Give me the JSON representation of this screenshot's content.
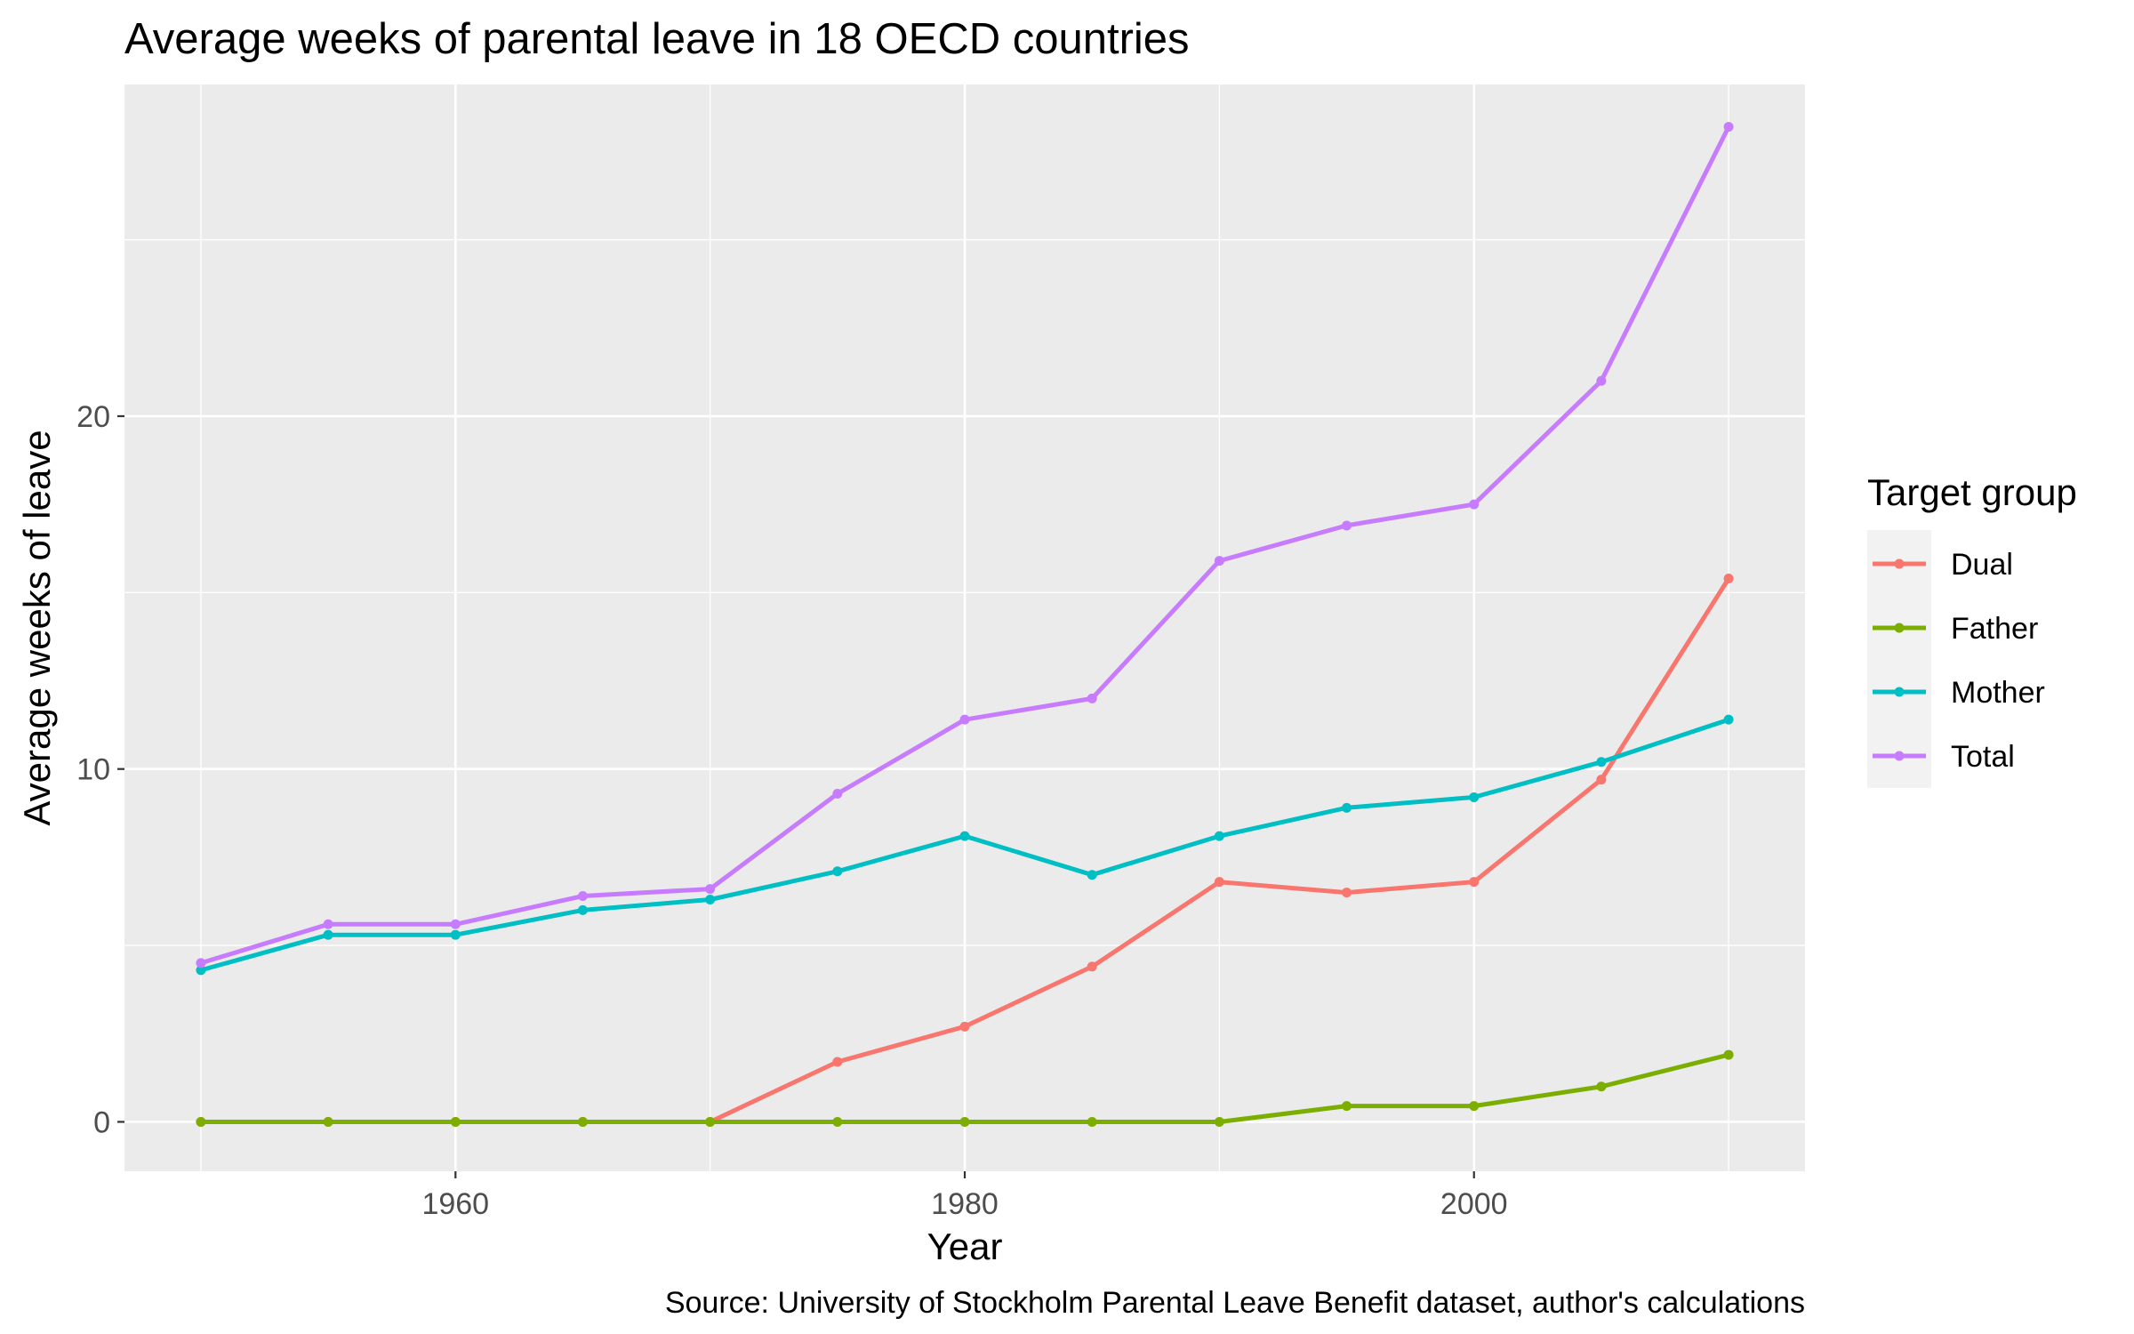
{
  "chart_data": {
    "type": "line",
    "title": "Average weeks of parental leave in 18 OECD countries",
    "caption": "Source: University of Stockholm Parental Leave Benefit dataset, author's calculations",
    "xlabel": "Year",
    "ylabel": "Average weeks of leave",
    "x": [
      1950,
      1955,
      1960,
      1965,
      1970,
      1975,
      1980,
      1985,
      1990,
      1995,
      2000,
      2005,
      2010
    ],
    "xlim": [
      1947,
      2013
    ],
    "ylim": [
      -1.4,
      29.4
    ],
    "x_ticks": [
      1960,
      1980,
      2000
    ],
    "x_tick_labels": [
      "1960",
      "1980",
      "2000"
    ],
    "y_ticks": [
      0,
      10,
      20
    ],
    "y_tick_labels": [
      "0",
      "10",
      "20"
    ],
    "grid": true,
    "panel_background": "#ebebeb",
    "legend": {
      "title": "Target group",
      "position": "right"
    },
    "series": [
      {
        "name": "Dual",
        "color": "#F8766D",
        "values": [
          0,
          0,
          0,
          0,
          0,
          1.7,
          2.7,
          4.4,
          6.8,
          6.5,
          6.8,
          9.7,
          15.4
        ]
      },
      {
        "name": "Father",
        "color": "#7CAE00",
        "values": [
          0,
          0,
          0,
          0,
          0,
          0,
          0,
          0,
          0,
          0.45,
          0.45,
          1.0,
          1.9
        ]
      },
      {
        "name": "Mother",
        "color": "#00BFC4",
        "values": [
          4.3,
          5.3,
          5.3,
          6.0,
          6.3,
          7.1,
          8.1,
          7.0,
          8.1,
          8.9,
          9.2,
          10.2,
          11.4
        ]
      },
      {
        "name": "Total",
        "color": "#C77CFF",
        "values": [
          4.5,
          5.6,
          5.6,
          6.4,
          6.6,
          9.3,
          11.4,
          12.0,
          15.9,
          16.9,
          17.5,
          21.0,
          28.2
        ]
      }
    ]
  }
}
